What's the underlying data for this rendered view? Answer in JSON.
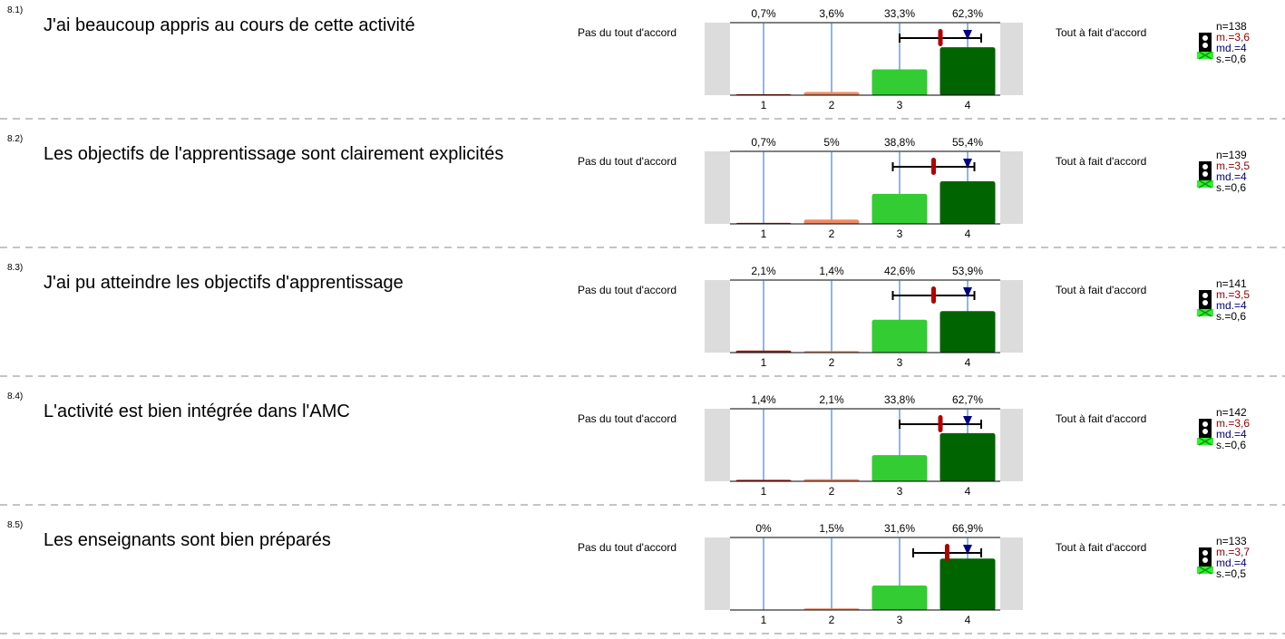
{
  "chart_data": [
    {
      "type": "bar",
      "number": "8.1)",
      "title": "J'ai beaucoup appris au cours de cette activité",
      "left_label": "Pas du tout d'accord",
      "right_label": "Tout à fait d'accord",
      "categories": [
        "1",
        "2",
        "3",
        "4"
      ],
      "values": [
        0.7,
        3.6,
        33.3,
        62.3
      ],
      "value_labels": [
        "0,7%",
        "3,6%",
        "33,3%",
        "62,3%"
      ],
      "colors": [
        "#a0201c",
        "#f08a64",
        "#33cc33",
        "#006400"
      ],
      "ylim": [
        0,
        100
      ],
      "n_label": "n=138",
      "mean": 3.6,
      "mean_label": "m.=3,6",
      "median": 4,
      "median_label": "md.=4",
      "sd": 0.6,
      "sd_label": "s.=0,6"
    },
    {
      "type": "bar",
      "number": "8.2)",
      "title": "Les objectifs de l'apprentissage sont clairement explicités",
      "left_label": "Pas du tout d'accord",
      "right_label": "Tout à fait d'accord",
      "categories": [
        "1",
        "2",
        "3",
        "4"
      ],
      "values": [
        0.7,
        5,
        38.8,
        55.4
      ],
      "value_labels": [
        "0,7%",
        "5%",
        "38,8%",
        "55,4%"
      ],
      "colors": [
        "#a0201c",
        "#f08a64",
        "#33cc33",
        "#006400"
      ],
      "ylim": [
        0,
        100
      ],
      "n_label": "n=139",
      "mean": 3.5,
      "mean_label": "m.=3,5",
      "median": 4,
      "median_label": "md.=4",
      "sd": 0.6,
      "sd_label": "s.=0,6"
    },
    {
      "type": "bar",
      "number": "8.3)",
      "title": "J'ai pu atteindre les objectifs d'apprentissage",
      "left_label": "Pas du tout d'accord",
      "right_label": "Tout à fait d'accord",
      "categories": [
        "1",
        "2",
        "3",
        "4"
      ],
      "values": [
        2.1,
        1.4,
        42.6,
        53.9
      ],
      "value_labels": [
        "2,1%",
        "1,4%",
        "42,6%",
        "53,9%"
      ],
      "colors": [
        "#a0201c",
        "#f08a64",
        "#33cc33",
        "#006400"
      ],
      "ylim": [
        0,
        100
      ],
      "n_label": "n=141",
      "mean": 3.5,
      "mean_label": "m.=3,5",
      "median": 4,
      "median_label": "md.=4",
      "sd": 0.6,
      "sd_label": "s.=0,6"
    },
    {
      "type": "bar",
      "number": "8.4)",
      "title": "L'activité est bien intégrée dans l'AMC",
      "left_label": "Pas du tout d'accord",
      "right_label": "Tout à fait d'accord",
      "categories": [
        "1",
        "2",
        "3",
        "4"
      ],
      "values": [
        1.4,
        2.1,
        33.8,
        62.7
      ],
      "value_labels": [
        "1,4%",
        "2,1%",
        "33,8%",
        "62,7%"
      ],
      "colors": [
        "#a0201c",
        "#f08a64",
        "#33cc33",
        "#006400"
      ],
      "ylim": [
        0,
        100
      ],
      "n_label": "n=142",
      "mean": 3.6,
      "mean_label": "m.=3,6",
      "median": 4,
      "median_label": "md.=4",
      "sd": 0.6,
      "sd_label": "s.=0,6"
    },
    {
      "type": "bar",
      "number": "8.5)",
      "title": "Les enseignants sont bien préparés",
      "left_label": "Pas du tout d'accord",
      "right_label": "Tout à fait d'accord",
      "categories": [
        "1",
        "2",
        "3",
        "4"
      ],
      "values": [
        0,
        1.5,
        31.6,
        66.9
      ],
      "value_labels": [
        "0%",
        "1,5%",
        "31,6%",
        "66,9%"
      ],
      "colors": [
        "#a0201c",
        "#f08a64",
        "#33cc33",
        "#006400"
      ],
      "ylim": [
        0,
        100
      ],
      "n_label": "n=133",
      "mean": 3.7,
      "mean_label": "m.=3,7",
      "median": 4,
      "median_label": "md.=4",
      "sd": 0.5,
      "sd_label": "s.=0,5"
    }
  ]
}
